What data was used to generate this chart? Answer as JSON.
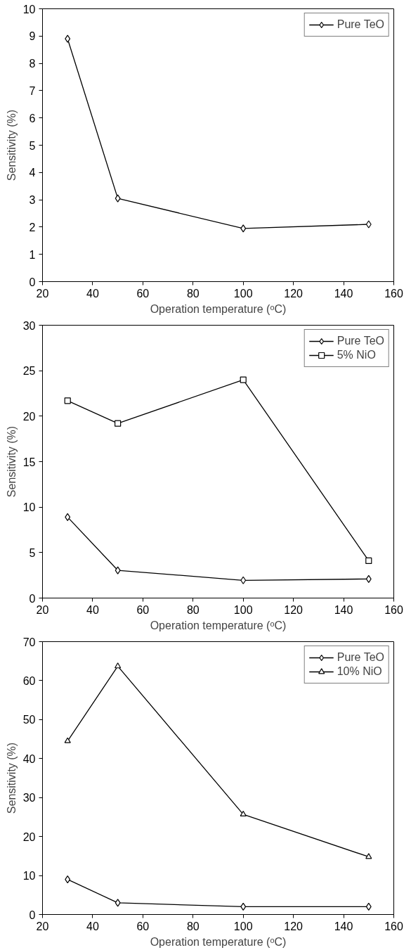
{
  "chart_data": [
    {
      "type": "line",
      "x": [
        30,
        50,
        100,
        150
      ],
      "xlim": [
        20,
        160
      ],
      "xticks": [
        20,
        40,
        60,
        80,
        100,
        120,
        140,
        160
      ],
      "ylim": [
        0,
        10
      ],
      "yticks": [
        0,
        1,
        2,
        3,
        4,
        5,
        6,
        7,
        8,
        9,
        10
      ],
      "xlabel": "Operation temperature (ᵒC)",
      "ylabel": "Sensitivity (%)",
      "grid": false,
      "legend": "top right",
      "series": [
        {
          "name": "Pure TeO",
          "color": "#000000",
          "marker": "diamond",
          "values": [
            8.9,
            3.05,
            1.95,
            2.1
          ]
        }
      ]
    },
    {
      "type": "line",
      "x": [
        30,
        50,
        100,
        150
      ],
      "xlim": [
        20,
        160
      ],
      "xticks": [
        20,
        40,
        60,
        80,
        100,
        120,
        140,
        160
      ],
      "ylim": [
        0,
        30
      ],
      "yticks": [
        0,
        5,
        10,
        15,
        20,
        25,
        30
      ],
      "xlabel": "Operation temperature (ᵒC)",
      "ylabel": "Sensitivity (%)",
      "grid": false,
      "legend": "top right",
      "series": [
        {
          "name": "Pure TeO",
          "color": "#000000",
          "marker": "diamond",
          "values": [
            8.9,
            3.05,
            1.95,
            2.1
          ]
        },
        {
          "name": "5% NiO",
          "color": "#000000",
          "marker": "square",
          "values": [
            21.7,
            19.2,
            24.0,
            4.1
          ]
        }
      ]
    },
    {
      "type": "line",
      "x": [
        30,
        50,
        100,
        150
      ],
      "xlim": [
        20,
        160
      ],
      "xticks": [
        20,
        40,
        60,
        80,
        100,
        120,
        140,
        160
      ],
      "ylim": [
        0,
        70
      ],
      "yticks": [
        0,
        10,
        20,
        30,
        40,
        50,
        60,
        70
      ],
      "xlabel": "Operation temperature (ᵒC)",
      "ylabel": "Sensitivity (%)",
      "grid": false,
      "legend": "top right",
      "series": [
        {
          "name": "Pure TeO",
          "color": "#000000",
          "marker": "diamond",
          "values": [
            9,
            3,
            2,
            2
          ]
        },
        {
          "name": "10% NiO",
          "color": "#000000",
          "marker": "triangle",
          "values": [
            44.5,
            63.7,
            25.7,
            14.8
          ]
        }
      ]
    }
  ]
}
